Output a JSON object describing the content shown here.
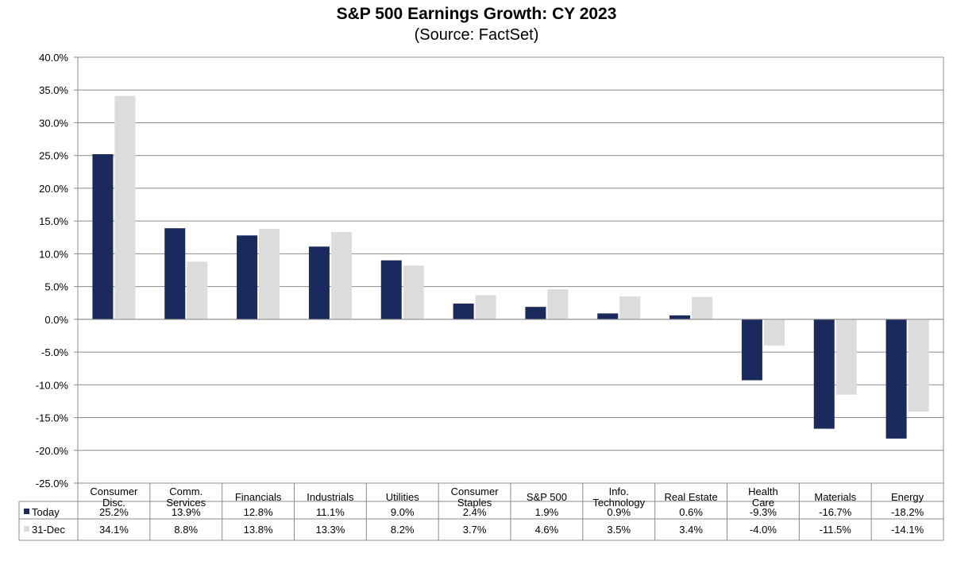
{
  "chart_data": {
    "type": "bar",
    "title": "S&P 500 Earnings Growth: CY 2023",
    "subtitle": "(Source: FactSet)",
    "categories": [
      [
        "Consumer",
        "Disc."
      ],
      [
        "Comm.",
        "Services"
      ],
      [
        "Financials"
      ],
      [
        "Industrials"
      ],
      [
        "Utilities"
      ],
      [
        "Consumer",
        "Staples"
      ],
      [
        "S&P 500"
      ],
      [
        "Info.",
        "Technology"
      ],
      [
        "Real Estate"
      ],
      [
        "Health",
        "Care"
      ],
      [
        "Materials"
      ],
      [
        "Energy"
      ]
    ],
    "series": [
      {
        "name": "Today",
        "color": "#1b2a5c",
        "values": [
          25.2,
          13.9,
          12.8,
          11.1,
          9.0,
          2.4,
          1.9,
          0.9,
          0.6,
          -9.3,
          -16.7,
          -18.2
        ],
        "labels": [
          "25.2%",
          "13.9%",
          "12.8%",
          "11.1%",
          "9.0%",
          "2.4%",
          "1.9%",
          "0.9%",
          "0.6%",
          "-9.3%",
          "-16.7%",
          "-18.2%"
        ]
      },
      {
        "name": "31-Dec",
        "color": "#dcdcdc",
        "values": [
          34.1,
          8.8,
          13.8,
          13.3,
          8.2,
          3.7,
          4.6,
          3.5,
          3.4,
          -4.0,
          -11.5,
          -14.1
        ],
        "labels": [
          "34.1%",
          "8.8%",
          "13.8%",
          "13.3%",
          "8.2%",
          "3.7%",
          "4.6%",
          "3.5%",
          "3.4%",
          "-4.0%",
          "-11.5%",
          "-14.1%"
        ]
      }
    ],
    "yticks": [
      "40.0%",
      "35.0%",
      "30.0%",
      "25.0%",
      "20.0%",
      "15.0%",
      "10.0%",
      "5.0%",
      "0.0%",
      "-5.0%",
      "-10.0%",
      "-15.0%",
      "-20.0%",
      "-25.0%"
    ],
    "ylim": [
      -25,
      40
    ],
    "ystep": 5,
    "grid": true,
    "legend": "data-table"
  }
}
